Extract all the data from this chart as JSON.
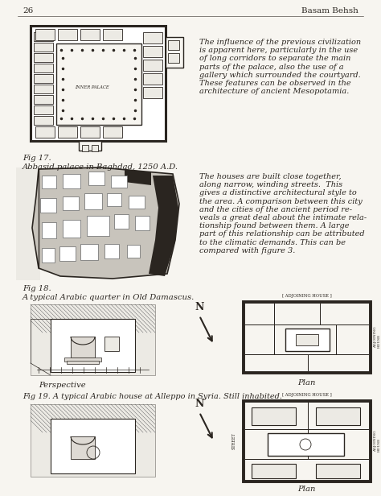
{
  "page_number": "26",
  "author": "Basam Behsh",
  "bg_color": "#f7f5f0",
  "text_color": "#2a2520",
  "fig17_caption_line1": "Fig 17.",
  "fig17_caption_line2": "Abbasid palace in Baghdad, 1250 A.D.",
  "fig18_caption_line1": "Fig 18.",
  "fig18_caption_line2": "A typical Arabic quarter in Old Damascus.",
  "fig19_caption": "Fig 19. A typical Arabic house at Alleppo in Syria. Still inhabited.",
  "text1_lines": [
    "The influence of the previous civilization",
    "is apparent here, particularly in the use",
    "of long corridors to separate the main",
    "parts of the palace, also the use of a",
    "gallery which surrounded the courtyard.",
    "These features can be observed in the",
    "architecture of ancient Mesopotamia."
  ],
  "text2_lines": [
    "The houses are built close together,",
    "along narrow, winding streets.  This",
    "gives a distinctive architectural style to",
    "the area. A comparison between this city",
    "and the cities of the ancient period re-",
    "veals a great deal about the intimate rela-",
    "tionship found between them. A large",
    "part of this relationship can be attributed",
    "to the climatic demands. This can be",
    "compared with figure 3."
  ],
  "perspective_label": "Perspective",
  "plan_label": "Plan",
  "dark_gray": "#2a2520",
  "mid_gray": "#888480",
  "light_gray": "#c8c4bc",
  "lighter_gray": "#dedad4",
  "very_light": "#eceae4"
}
